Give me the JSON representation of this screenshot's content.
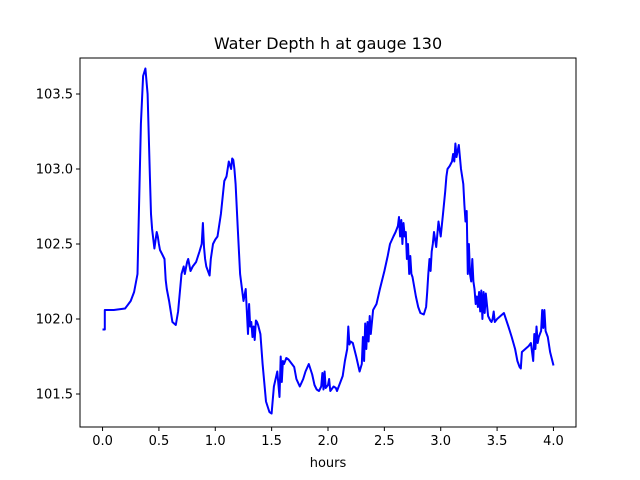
{
  "chart_data": {
    "type": "line",
    "title": "Water Depth h at gauge 130",
    "xlabel": "hours",
    "ylabel": "",
    "xlim": [
      -0.2,
      4.2
    ],
    "ylim": [
      101.28,
      103.74
    ],
    "xticks": [
      0.0,
      0.5,
      1.0,
      1.5,
      2.0,
      2.5,
      3.0,
      3.5,
      4.0
    ],
    "xtick_labels": [
      "0.0",
      "0.5",
      "1.0",
      "1.5",
      "2.0",
      "2.5",
      "3.0",
      "3.5",
      "4.0"
    ],
    "yticks": [
      101.5,
      102.0,
      102.5,
      103.0,
      103.5
    ],
    "ytick_labels": [
      "101.5",
      "102.0",
      "102.5",
      "103.0",
      "103.5"
    ],
    "grid": false,
    "colors": {
      "line": "#0000ff"
    },
    "series": [
      {
        "name": "",
        "x": [
          0.0,
          0.02,
          0.02,
          0.1,
          0.2,
          0.25,
          0.28,
          0.31,
          0.34,
          0.36,
          0.38,
          0.4,
          0.42,
          0.43,
          0.44,
          0.46,
          0.48,
          0.49,
          0.5,
          0.51,
          0.53,
          0.55,
          0.56,
          0.57,
          0.59,
          0.62,
          0.65,
          0.67,
          0.7,
          0.72,
          0.73,
          0.75,
          0.76,
          0.78,
          0.8,
          0.83,
          0.86,
          0.88,
          0.89,
          0.9,
          0.91,
          0.92,
          0.95,
          0.96,
          0.97,
          0.98,
          1.0,
          1.02,
          1.05,
          1.08,
          1.1,
          1.12,
          1.14,
          1.15,
          1.16,
          1.17,
          1.18,
          1.2,
          1.22,
          1.25,
          1.27,
          1.29,
          1.3,
          1.31,
          1.32,
          1.33,
          1.34,
          1.35,
          1.36,
          1.37,
          1.38,
          1.4,
          1.42,
          1.45,
          1.48,
          1.5,
          1.52,
          1.55,
          1.57,
          1.58,
          1.59,
          1.6,
          1.61,
          1.63,
          1.65,
          1.7,
          1.72,
          1.75,
          1.78,
          1.8,
          1.83,
          1.86,
          1.88,
          1.9,
          1.92,
          1.94,
          1.95,
          1.96,
          1.97,
          1.98,
          2.0,
          2.01,
          2.02,
          2.03,
          2.05,
          2.07,
          2.08,
          2.1,
          2.13,
          2.15,
          2.17,
          2.18,
          2.19,
          2.2,
          2.22,
          2.25,
          2.28,
          2.3,
          2.31,
          2.32,
          2.33,
          2.34,
          2.35,
          2.36,
          2.37,
          2.38,
          2.4,
          2.43,
          2.46,
          2.5,
          2.53,
          2.55,
          2.58,
          2.6,
          2.62,
          2.63,
          2.64,
          2.65,
          2.66,
          2.67,
          2.68,
          2.69,
          2.7,
          2.71,
          2.72,
          2.73,
          2.74,
          2.75,
          2.78,
          2.8,
          2.82,
          2.85,
          2.87,
          2.88,
          2.89,
          2.9,
          2.91,
          2.92,
          2.93,
          2.94,
          2.96,
          2.98,
          3.0,
          3.02,
          3.04,
          3.05,
          3.06,
          3.08,
          3.1,
          3.11,
          3.12,
          3.13,
          3.14,
          3.16,
          3.18,
          3.2,
          3.21,
          3.22,
          3.23,
          3.24,
          3.25,
          3.26,
          3.27,
          3.28,
          3.29,
          3.3,
          3.31,
          3.32,
          3.33,
          3.34,
          3.35,
          3.36,
          3.37,
          3.38,
          3.39,
          3.4,
          3.42,
          3.44,
          3.45,
          3.46,
          3.47,
          3.48,
          3.5,
          3.53,
          3.56,
          3.6,
          3.63,
          3.66,
          3.68,
          3.7,
          3.71,
          3.72,
          3.75,
          3.78,
          3.8,
          3.82,
          3.83,
          3.84,
          3.85,
          3.86,
          3.87,
          3.88,
          3.89,
          3.9,
          3.91,
          3.92,
          3.93,
          3.95,
          3.97,
          4.0
        ],
        "y": [
          101.93,
          101.93,
          102.06,
          102.06,
          102.07,
          102.12,
          102.18,
          102.3,
          103.3,
          103.62,
          103.67,
          103.5,
          102.95,
          102.7,
          102.6,
          102.47,
          102.58,
          102.55,
          102.5,
          102.46,
          102.43,
          102.4,
          102.26,
          102.2,
          102.12,
          101.98,
          101.96,
          102.05,
          102.3,
          102.35,
          102.3,
          102.38,
          102.4,
          102.32,
          102.35,
          102.38,
          102.45,
          102.5,
          102.64,
          102.48,
          102.4,
          102.35,
          102.29,
          102.4,
          102.45,
          102.5,
          102.53,
          102.55,
          102.7,
          102.92,
          102.95,
          103.05,
          103.0,
          103.07,
          103.06,
          103.0,
          102.9,
          102.6,
          102.3,
          102.12,
          102.2,
          101.9,
          102.1,
          101.95,
          101.98,
          101.88,
          101.95,
          101.86,
          101.99,
          101.98,
          101.96,
          101.9,
          101.7,
          101.45,
          101.38,
          101.37,
          101.55,
          101.65,
          101.48,
          101.75,
          101.58,
          101.72,
          101.7,
          101.74,
          101.73,
          101.68,
          101.6,
          101.55,
          101.6,
          101.65,
          101.7,
          101.63,
          101.56,
          101.53,
          101.52,
          101.55,
          101.64,
          101.53,
          101.65,
          101.54,
          101.56,
          101.6,
          101.52,
          101.53,
          101.55,
          101.54,
          101.52,
          101.56,
          101.62,
          101.72,
          101.8,
          101.95,
          101.83,
          101.85,
          101.84,
          101.75,
          101.65,
          101.7,
          101.88,
          101.72,
          101.97,
          101.8,
          101.98,
          101.85,
          102.02,
          101.9,
          102.06,
          102.1,
          102.2,
          102.32,
          102.42,
          102.5,
          102.55,
          102.58,
          102.62,
          102.68,
          102.55,
          102.66,
          102.5,
          102.64,
          102.55,
          102.58,
          102.4,
          102.5,
          102.3,
          102.42,
          102.3,
          102.28,
          102.15,
          102.08,
          102.04,
          102.03,
          102.08,
          102.18,
          102.3,
          102.4,
          102.32,
          102.45,
          102.5,
          102.58,
          102.48,
          102.65,
          102.55,
          102.7,
          102.85,
          102.95,
          103.0,
          103.02,
          103.05,
          103.1,
          103.05,
          103.17,
          103.08,
          103.16,
          103.0,
          102.9,
          102.76,
          102.65,
          102.72,
          102.3,
          102.5,
          102.3,
          102.25,
          102.4,
          102.25,
          102.2,
          102.1,
          102.15,
          102.08,
          102.18,
          102.05,
          102.19,
          102.0,
          102.18,
          102.04,
          102.17,
          102.02,
          101.99,
          101.98,
          102.0,
          102.05,
          101.98,
          102.0,
          102.02,
          102.04,
          101.95,
          101.88,
          101.8,
          101.72,
          101.68,
          101.67,
          101.78,
          101.8,
          101.82,
          101.84,
          101.72,
          101.9,
          101.8,
          101.95,
          101.84,
          101.88,
          101.9,
          101.92,
          102.06,
          101.94,
          102.06,
          101.92,
          101.88,
          101.78,
          101.69
        ]
      }
    ]
  }
}
